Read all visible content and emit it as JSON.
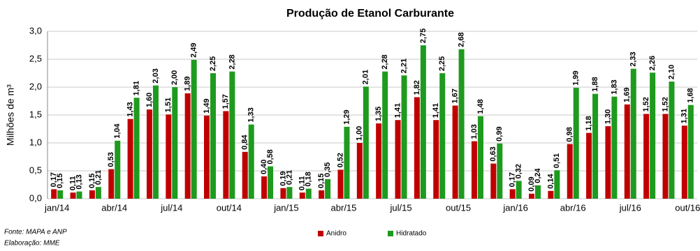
{
  "chart_data": {
    "type": "bar",
    "title": "Produção de Etanol Carburante",
    "y_label": "Milhões de m³",
    "categories": [
      "jan/14",
      null,
      null,
      "abr/14",
      null,
      null,
      "jul/14",
      null,
      null,
      "out/14",
      null,
      null,
      "jan/15",
      null,
      null,
      "abr/15",
      null,
      null,
      "jul/15",
      null,
      null,
      "out/15",
      null,
      null,
      "jan/16",
      null,
      null,
      "abr/16",
      null,
      null,
      "jul/16",
      null,
      null,
      "out/16"
    ],
    "series": [
      {
        "name": "Anidro",
        "color": "#c00000",
        "values": [
          0.17,
          0.11,
          0.15,
          0.53,
          1.43,
          1.6,
          1.51,
          1.89,
          1.49,
          1.57,
          0.84,
          0.4,
          0.19,
          0.11,
          0.15,
          0.52,
          1.0,
          1.35,
          1.41,
          1.82,
          1.41,
          1.67,
          1.03,
          0.63,
          0.17,
          0.09,
          0.14,
          0.98,
          1.18,
          1.3,
          1.69,
          1.52,
          1.52,
          1.31
        ],
        "value_labels": [
          "0,17",
          "0,11",
          "0,15",
          "0,53",
          "1,43",
          "1,60",
          "1,51",
          "1,89",
          "1,49",
          "1,57",
          "0,84",
          "0,40",
          "0,19",
          "0,11",
          "0,15",
          "0,52",
          "1,00",
          "1,35",
          "1,41",
          "1,82",
          "1,41",
          "1,67",
          "1,03",
          "0,63",
          "0,17",
          "0,09",
          "0,14",
          "0,98",
          "1,18",
          "1,30",
          "1,69",
          "1,52",
          "1,52",
          "1,31"
        ]
      },
      {
        "name": "Hidratado",
        "color": "#1e9a1e",
        "values": [
          0.15,
          0.13,
          0.21,
          1.04,
          1.81,
          2.03,
          2.0,
          2.49,
          2.25,
          2.28,
          1.33,
          0.58,
          0.21,
          0.18,
          0.35,
          1.29,
          2.01,
          2.28,
          2.21,
          2.75,
          2.25,
          2.68,
          1.48,
          0.99,
          0.32,
          0.24,
          0.51,
          1.99,
          1.88,
          1.83,
          2.33,
          2.26,
          2.1,
          1.68
        ],
        "value_labels": [
          "0,15",
          "0,13",
          "0,21",
          "1,04",
          "1,81",
          "2,03",
          "2,00",
          "2,49",
          "2,25",
          "2,28",
          "1,33",
          "0,58",
          "0,21",
          "0,18",
          "0,35",
          "1,29",
          "2,01",
          "2,28",
          "2,21",
          "2,75",
          "2,25",
          "2,68",
          "1,48",
          "0,99",
          "0,32",
          "0,24",
          "0,51",
          "1,99",
          "1,88",
          "1,83",
          "2,33",
          "2,26",
          "2,10",
          "1,68"
        ]
      }
    ],
    "ylim": [
      0,
      3
    ],
    "yticks": [
      {
        "value": 0,
        "label": "0,0"
      },
      {
        "value": 0.5,
        "label": "0,5"
      },
      {
        "value": 1,
        "label": "1,0"
      },
      {
        "value": 1.5,
        "label": "1,5"
      },
      {
        "value": 2,
        "label": "2,0"
      },
      {
        "value": 2.5,
        "label": "2,5"
      },
      {
        "value": 3,
        "label": "3,0"
      }
    ],
    "grid": true,
    "legend": "bottom",
    "source": "Fonte: MAPA e ANP",
    "credit": "Elaboração: MME"
  }
}
